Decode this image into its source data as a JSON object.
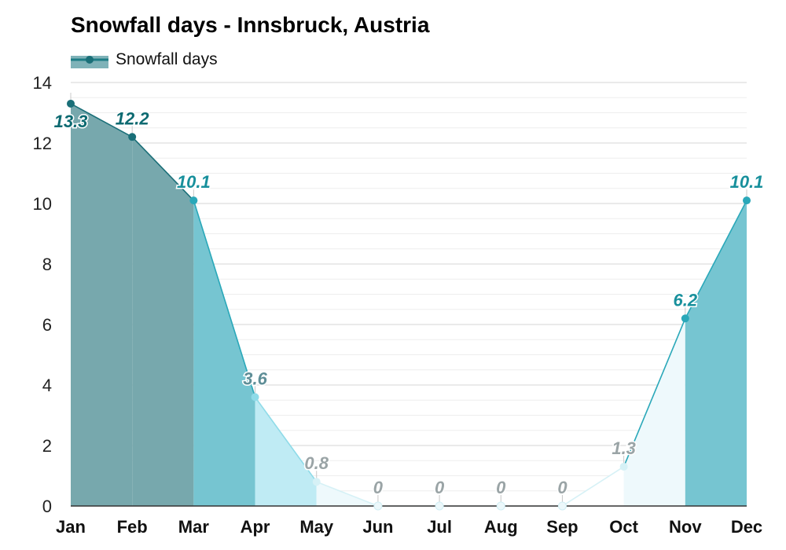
{
  "chart_data": {
    "type": "area",
    "title": "Snowfall days - Innsbruck, Austria",
    "xlabel": "",
    "ylabel": "",
    "ylim": [
      0,
      14
    ],
    "yticks": [
      0,
      2,
      4,
      6,
      8,
      10,
      12,
      14
    ],
    "grid": true,
    "legend_position": "top-left",
    "categories": [
      "Jan",
      "Feb",
      "Mar",
      "Apr",
      "May",
      "Jun",
      "Jul",
      "Aug",
      "Sep",
      "Oct",
      "Nov",
      "Dec"
    ],
    "series": [
      {
        "name": "Snowfall days",
        "values": [
          13.3,
          12.2,
          10.1,
          3.6,
          0.8,
          0,
          0,
          0,
          0,
          1.3,
          6.2,
          10.1
        ],
        "labels": [
          "13.3",
          "12.2",
          "10.1",
          "3.6",
          "0.8",
          "0",
          "0",
          "0",
          "0",
          "1.3",
          "6.2",
          "10.1"
        ]
      }
    ]
  },
  "colors": {
    "legend_line": "#1e7d86",
    "legend_fill": "#7fb2b8",
    "grid": "#e2e2e2",
    "axis": "#333333",
    "level_dark": "#77a8ad",
    "level_high": "#76c5d1",
    "level_mid": "#bfebf4",
    "level_low": "#eef9fc",
    "level_none": "#ffffff",
    "point_dark": "#1a6f78",
    "point_high": "#2aa8b9",
    "point_mid": "#8fdbe8",
    "point_low": "#d6f1f6",
    "label_dark": "#0d6a71",
    "label_high": "#18909c",
    "label_mid": "#5e8e97",
    "label_low": "#9aa4a6"
  }
}
